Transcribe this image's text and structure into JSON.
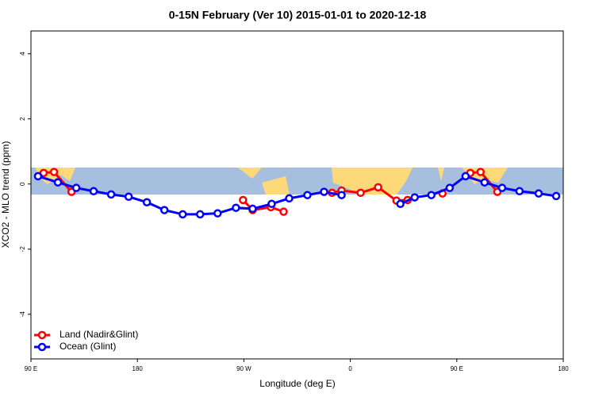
{
  "chart_data": {
    "type": "line",
    "title": "0-15N February (Ver 10)   2015-01-01 to 2020-12-18",
    "x_label": "Longitude (deg E)",
    "y_label": "XCO2 - MLO trend (ppm)",
    "xlim": [
      90,
      540
    ],
    "ylim": [
      -5.37,
      4.7
    ],
    "xticks": [
      {
        "value": 90,
        "label": "90 E"
      },
      {
        "value": 180,
        "label": "180"
      },
      {
        "value": 270,
        "label": "90 W"
      },
      {
        "value": 360,
        "label": "0"
      },
      {
        "value": 450,
        "label": "90 E"
      },
      {
        "value": 540,
        "label": "180"
      }
    ],
    "yticks": [
      -4,
      -2,
      0,
      2,
      4
    ],
    "legend": "bottom-left",
    "series": [
      {
        "name": "Land (Nadir&Glint)",
        "color": "#ff0000",
        "x": [
          100.7,
          109.5,
          124.3,
          200,
          269.3,
          277.4,
          292.8,
          303.6,
          320,
          344.5,
          352.6,
          368.7,
          383.5,
          399,
          408.4,
          420,
          437.9,
          450,
          461.4,
          470.1,
          484.3
        ],
        "values": [
          0.34,
          0.37,
          -0.24,
          null,
          -0.49,
          -0.8,
          -0.71,
          -0.85,
          null,
          -0.27,
          -0.2,
          -0.27,
          -0.1,
          -0.51,
          -0.49,
          null,
          -0.29,
          null,
          0.34,
          0.37,
          -0.24
        ]
      },
      {
        "name": "Ocean (Glint)",
        "color": "#0000ff",
        "x": [
          96,
          112.8,
          128.3,
          143,
          157.8,
          172.6,
          188,
          202.8,
          218.3,
          233,
          247.8,
          263.3,
          277.4,
          293.5,
          308.3,
          323.7,
          337.8,
          352.6,
          380,
          402.3,
          414.4,
          428.5,
          444,
          457.4,
          473.5,
          488.3,
          503,
          519.2,
          534
        ],
        "values": [
          0.24,
          0.05,
          -0.12,
          -0.22,
          -0.32,
          -0.39,
          -0.56,
          -0.8,
          -0.93,
          -0.93,
          -0.9,
          -0.73,
          -0.76,
          -0.61,
          -0.44,
          -0.34,
          -0.24,
          -0.34,
          null,
          -0.61,
          -0.41,
          -0.34,
          -0.12,
          0.24,
          0.05,
          -0.12,
          -0.22,
          -0.29,
          -0.37
        ]
      }
    ]
  }
}
